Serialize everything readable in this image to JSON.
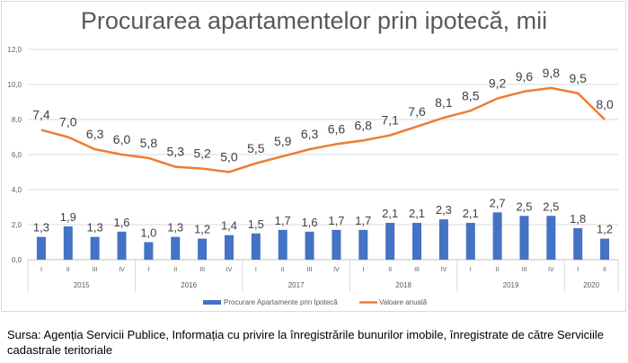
{
  "chart_data": {
    "type": "bar+line",
    "title": "Procurarea apartamentelor prin ipotecă, mii",
    "years": [
      {
        "label": "2015",
        "count": 4
      },
      {
        "label": "2016",
        "count": 4
      },
      {
        "label": "2017",
        "count": 4
      },
      {
        "label": "2018",
        "count": 4
      },
      {
        "label": "2019",
        "count": 4
      },
      {
        "label": "2020",
        "count": 2
      }
    ],
    "categories": [
      "I",
      "II",
      "III",
      "IV",
      "I",
      "II",
      "III",
      "IV",
      "I",
      "II",
      "III",
      "IV",
      "I",
      "II",
      "III",
      "IV",
      "I",
      "II",
      "III",
      "IV",
      "I",
      "II"
    ],
    "series": [
      {
        "name": "Procurare Apartamente prin Ipotecă",
        "type": "bar",
        "color": "#4472c4",
        "values": [
          1.3,
          1.9,
          1.3,
          1.6,
          1.0,
          1.3,
          1.2,
          1.4,
          1.5,
          1.7,
          1.6,
          1.7,
          1.7,
          2.1,
          2.1,
          2.3,
          2.1,
          2.7,
          2.5,
          2.5,
          1.8,
          1.2
        ]
      },
      {
        "name": "Valoare anuală",
        "type": "line",
        "color": "#ed7d31",
        "values": [
          7.4,
          7.0,
          6.3,
          6.0,
          5.8,
          5.3,
          5.2,
          5.0,
          5.5,
          5.9,
          6.3,
          6.6,
          6.8,
          7.1,
          7.6,
          8.1,
          8.5,
          9.2,
          9.6,
          9.8,
          9.5,
          8.0
        ]
      }
    ],
    "ylim": [
      0,
      12
    ],
    "yticks": [
      "0,0",
      "2,0",
      "4,0",
      "6,0",
      "8,0",
      "10,0",
      "12,0"
    ],
    "grid": true,
    "legend": "bottom"
  },
  "source": "Sursa: Agenția Servicii Publice, Informația cu privire la înregistrările bunurilor imobile, înregistrate de către Serviciile cadastrale teritoriale"
}
